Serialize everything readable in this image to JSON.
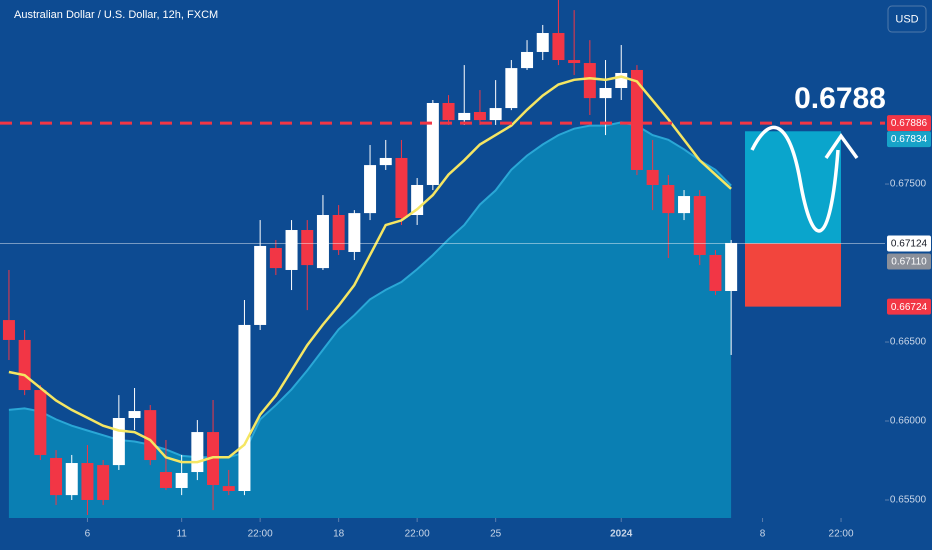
{
  "chart_data": {
    "type": "candlestick",
    "title": "Australian Dollar / U.S. Dollar, 12h, FXCM",
    "currency": "USD",
    "annotation": "0.6788",
    "up_color": "#ffffff",
    "down_color": "#f23645",
    "open": [
      0.66639,
      0.66513,
      0.66196,
      0.65766,
      0.65531,
      0.65734,
      0.65721,
      0.65721,
      0.66019,
      0.66069,
      0.65677,
      0.65576,
      0.65677,
      0.6593,
      0.65588,
      0.65557,
      0.66608,
      0.67095,
      0.66956,
      0.67209,
      0.66968,
      0.67304,
      0.6707,
      0.67316,
      0.6762,
      0.67665,
      0.67304,
      0.67494,
      0.68013,
      0.67905,
      0.67956,
      0.67905,
      0.67981,
      0.68234,
      0.68336,
      0.68456,
      0.68285,
      0.68266,
      0.68044,
      0.68108,
      0.68222,
      0.67589,
      0.67494,
      0.67316,
      0.67424,
      0.67051,
      0.66823
    ],
    "high": [
      0.66956,
      0.66576,
      0.66228,
      0.65816,
      0.65785,
      0.65848,
      0.65753,
      0.66164,
      0.66209,
      0.66101,
      0.6588,
      0.65785,
      0.66006,
      0.66133,
      0.6569,
      0.66766,
      0.67272,
      0.67146,
      0.67272,
      0.67272,
      0.6743,
      0.67367,
      0.67335,
      0.67747,
      0.67779,
      0.67779,
      0.67538,
      0.68032,
      0.68063,
      0.68253,
      0.68095,
      0.68158,
      0.68285,
      0.68411,
      0.68507,
      0.68665,
      0.68601,
      0.68411,
      0.68285,
      0.6838,
      0.68253,
      0.67779,
      0.67557,
      0.67462,
      0.67462,
      0.67082,
      0.67146
    ],
    "low": [
      0.66386,
      0.66164,
      0.65753,
      0.65468,
      0.655,
      0.65405,
      0.65468,
      0.6569,
      0.65943,
      0.65721,
      0.65563,
      0.65531,
      0.65626,
      0.65436,
      0.65531,
      0.65531,
      0.66576,
      0.66924,
      0.66829,
      0.66702,
      0.66956,
      0.67051,
      0.67019,
      0.67272,
      0.67589,
      0.67241,
      0.67241,
      0.67462,
      0.67874,
      0.67874,
      0.67874,
      0.67874,
      0.67968,
      0.68222,
      0.68285,
      0.68253,
      0.6819,
      0.67937,
      0.6781,
      0.68032,
      0.67557,
      0.67335,
      0.67032,
      0.67272,
      0.66987,
      0.66797,
      0.66418
    ],
    "close": [
      0.66513,
      0.66196,
      0.65785,
      0.65531,
      0.65734,
      0.655,
      0.655,
      0.66019,
      0.66063,
      0.65753,
      0.65576,
      0.65671,
      0.6593,
      0.65595,
      0.65557,
      0.66608,
      0.67108,
      0.66968,
      0.67209,
      0.66987,
      0.67304,
      0.67082,
      0.67316,
      0.6762,
      0.67665,
      0.67285,
      0.67494,
      0.68013,
      0.67905,
      0.6795,
      0.67905,
      0.67981,
      0.68234,
      0.68336,
      0.68456,
      0.68285,
      0.68266,
      0.68044,
      0.68108,
      0.68203,
      0.67589,
      0.67494,
      0.67316,
      0.67424,
      0.67051,
      0.66823,
      0.67127
    ],
    "series": [
      {
        "color": "#f5e663",
        "values": [
          0.6631,
          0.6629,
          0.6621,
          0.6613,
          0.6607,
          0.6602,
          0.6597,
          0.6594,
          0.6593,
          0.6588,
          0.6577,
          0.6574,
          0.6574,
          0.6577,
          0.6577,
          0.6585,
          0.6604,
          0.6616,
          0.6632,
          0.6648,
          0.6661,
          0.6673,
          0.6686,
          0.6705,
          0.6724,
          0.6727,
          0.6734,
          0.6743,
          0.6756,
          0.6765,
          0.6775,
          0.6781,
          0.6787,
          0.6797,
          0.6806,
          0.6813,
          0.6816,
          0.6817,
          0.6816,
          0.6818,
          0.6815,
          0.6803,
          0.6791,
          0.6778,
          0.6765,
          0.6756,
          0.6747
        ]
      },
      {
        "color": "#0a88b9",
        "values": [
          0.6607,
          0.6608,
          0.6606,
          0.6601,
          0.6597,
          0.6594,
          0.6591,
          0.6588,
          0.6587,
          0.6585,
          0.6582,
          0.6578,
          0.6577,
          0.6577,
          0.6577,
          0.658,
          0.6601,
          0.661,
          0.662,
          0.6632,
          0.6645,
          0.6658,
          0.6667,
          0.6677,
          0.6683,
          0.6688,
          0.6696,
          0.6705,
          0.6715,
          0.6724,
          0.6737,
          0.6746,
          0.6759,
          0.6768,
          0.6775,
          0.6781,
          0.6785,
          0.6787,
          0.6787,
          0.6789,
          0.6787,
          0.6781,
          0.6778,
          0.6772,
          0.6765,
          0.6759,
          0.6749
        ]
      }
    ],
    "xlim": [
      -0.57,
      55.8
    ],
    "xticks": [
      {
        "value": 5,
        "label": "6"
      },
      {
        "value": 11,
        "label": "11"
      },
      {
        "value": 16,
        "label": "22:00"
      },
      {
        "value": 21,
        "label": "18"
      },
      {
        "value": 26,
        "label": "22:00"
      },
      {
        "value": 31,
        "label": "25"
      },
      {
        "value": 39,
        "label": "2024"
      },
      {
        "value": 48,
        "label": "8"
      },
      {
        "value": 53,
        "label": "22:00"
      }
    ],
    "ylim": [
      0.65386,
      0.68665
    ],
    "yticks": [
      {
        "value": 0.655,
        "label": "0.65500"
      },
      {
        "value": 0.66,
        "label": "0.66000"
      },
      {
        "value": 0.665,
        "label": "0.66500"
      },
      {
        "value": 0.675,
        "label": "0.67500"
      }
    ],
    "price_labels": [
      {
        "value": 0.67886,
        "label": "0.67886",
        "color": "#f23645"
      },
      {
        "value": 0.67834,
        "label": "0.67834",
        "color": "#17a2c8"
      },
      {
        "value": 0.67124,
        "label": "0.67124",
        "color": "#ffffff"
      },
      {
        "value": 0.6711,
        "label": "0.67110",
        "color": "#8a8f99"
      },
      {
        "value": 0.66724,
        "label": "0.66724",
        "color": "#f23645"
      }
    ]
  }
}
